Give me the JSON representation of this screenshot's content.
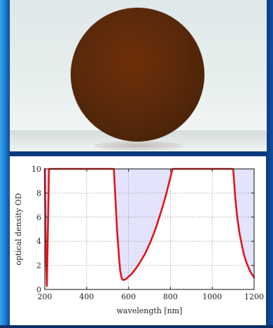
{
  "photo": {
    "subject": "filter-disc"
  },
  "chart_data": {
    "type": "line",
    "xlabel": "wavelength [nm]",
    "ylabel": "optical density OD",
    "xlim": [
      200,
      1200
    ],
    "ylim": [
      0,
      10
    ],
    "xticks": [
      "200",
      "400",
      "600",
      "800",
      "1000",
      "1200"
    ],
    "yticks": [
      "0",
      "2",
      "4",
      "6",
      "8",
      "10"
    ],
    "grid": true,
    "colors": {
      "line": "#e0151b",
      "fill": "#e3e3fb",
      "grid": "#9a9a9a"
    },
    "series": [
      {
        "x": [
          200,
          205,
          210,
          220,
          230,
          235,
          530,
          545,
          555,
          560,
          565,
          570,
          575,
          580,
          590,
          600,
          610,
          620,
          640,
          660,
          680,
          700,
          720,
          740,
          760,
          780,
          800,
          810,
          820,
          1090,
          1100,
          1105,
          1110,
          1120,
          1130,
          1140,
          1150,
          1160,
          1170,
          1180,
          1190,
          1200
        ],
        "values": [
          10,
          3.0,
          0.3,
          10,
          10,
          10,
          10,
          5.0,
          2.6,
          1.6,
          1.1,
          0.85,
          0.78,
          0.8,
          0.9,
          1.05,
          1.2,
          1.4,
          1.85,
          2.4,
          3.0,
          3.75,
          4.6,
          5.6,
          6.7,
          7.9,
          9.3,
          10,
          10,
          10,
          10,
          8.8,
          7.6,
          5.9,
          4.7,
          3.8,
          3.0,
          2.4,
          1.95,
          1.55,
          1.25,
          1.0
        ]
      }
    ]
  }
}
